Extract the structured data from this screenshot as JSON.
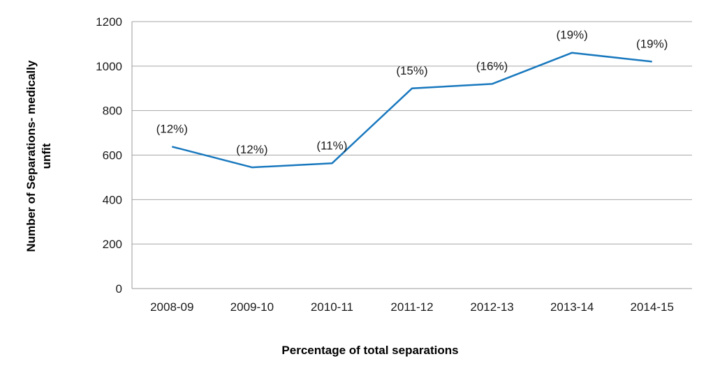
{
  "chart_data": {
    "type": "line",
    "categories": [
      "2008-09",
      "2009-10",
      "2010-11",
      "2011-12",
      "2012-13",
      "2013-14",
      "2014-15"
    ],
    "series": [
      {
        "values": [
          638,
          545,
          563,
          900,
          920,
          1060,
          1020
        ],
        "data_labels": [
          "(12%)",
          "(12%)",
          "(11%)",
          "(15%)",
          "(16%)",
          "(19%)",
          "(19%)"
        ]
      }
    ],
    "ylabel_line1": "Number of Separations- medically",
    "ylabel_line2": "unfit",
    "xlabel": "Percentage of total separations",
    "ylim": [
      0,
      1200
    ],
    "yticks": [
      0,
      200,
      400,
      600,
      800,
      1000,
      1200
    ],
    "grid": true,
    "line_color": "#1878BE",
    "grid_color": "#A6A6A6",
    "axis_color": "#9A9A9A"
  }
}
